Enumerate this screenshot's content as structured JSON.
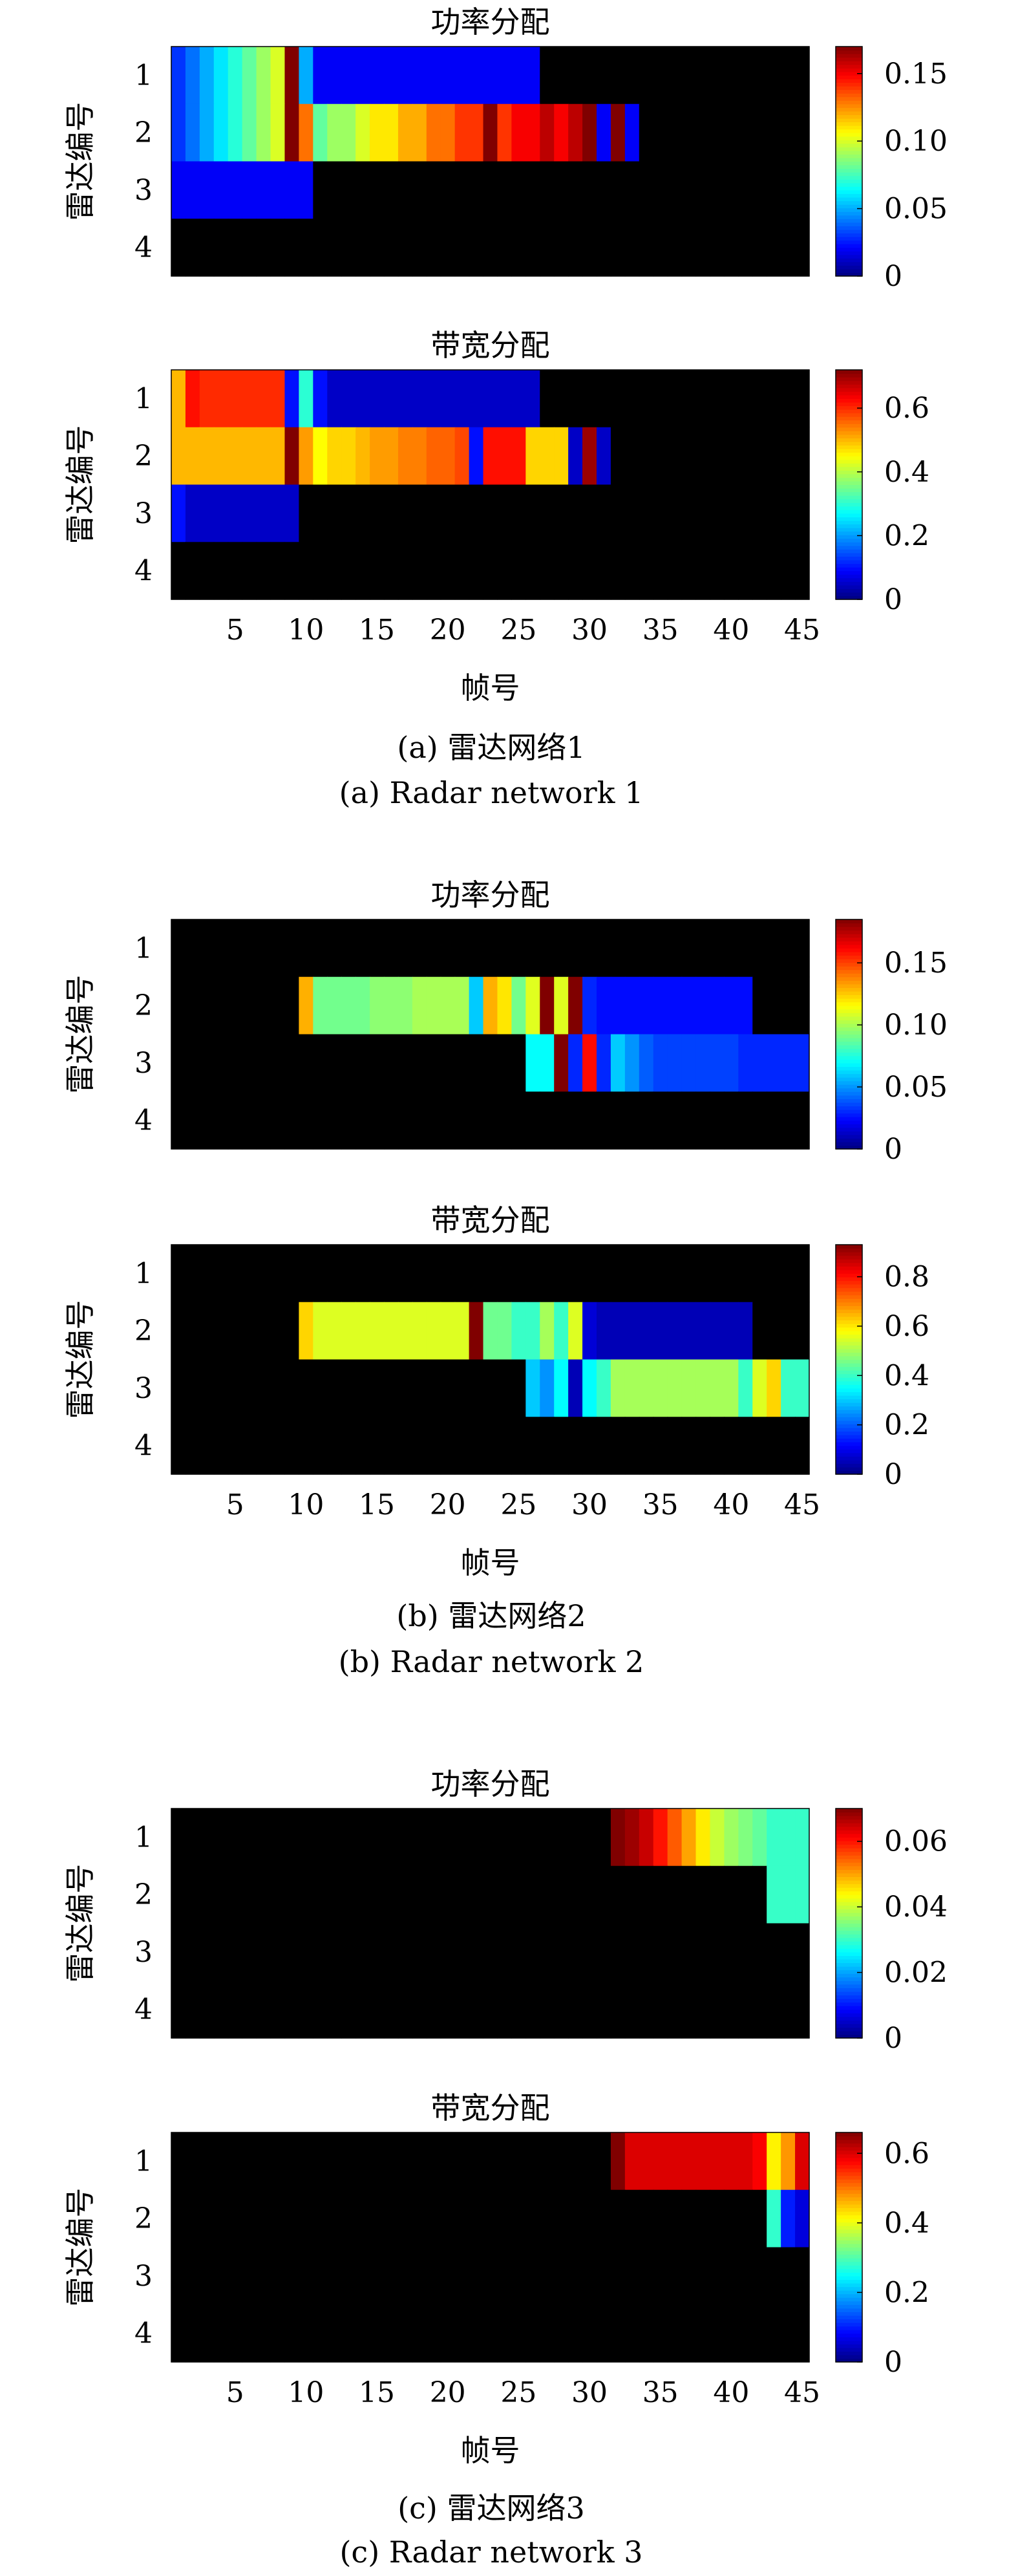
{
  "figure": {
    "ylabel": "雷达编号",
    "xlabel": "帧号",
    "y_tick_labels": [
      "1",
      "2",
      "3",
      "4"
    ],
    "x_tick_labels": [
      "5",
      "10",
      "15",
      "20",
      "25",
      "30",
      "35",
      "40",
      "45"
    ],
    "colormap": "jet",
    "zero_color": "#000000",
    "panels": [
      {
        "caption_cn": "(a) 雷达网络1",
        "caption_en": "(a) Radar network 1"
      },
      {
        "caption_cn": "(b) 雷达网络2",
        "caption_en": "(b) Radar network 2"
      },
      {
        "caption_cn": "(c) 雷达网络3",
        "caption_en": "(c) Radar network 3"
      }
    ]
  },
  "chart_data": [
    {
      "type": "heatmap",
      "panel": 0,
      "title": "功率分配",
      "ylabel": "雷达编号",
      "xlabel": "",
      "x": [
        1,
        45
      ],
      "rows": [
        "1",
        "2",
        "3",
        "4"
      ],
      "clim": [
        0,
        0.17
      ],
      "colorbar_ticks": [
        0,
        0.05,
        0.1,
        0.15
      ],
      "colorbar_tick_labels": [
        "0",
        "0.05",
        "0.10",
        "0.15"
      ],
      "values": [
        [
          0.03,
          0.04,
          0.05,
          0.06,
          0.07,
          0.08,
          0.09,
          0.1,
          0.17,
          0.05,
          0.02,
          0.02,
          0.02,
          0.02,
          0.02,
          0.02,
          0.02,
          0.02,
          0.02,
          0.02,
          0.02,
          0.02,
          0.02,
          0.02,
          0.02,
          0.02,
          0,
          0,
          0,
          0,
          0,
          0,
          0,
          0,
          0,
          0,
          0,
          0,
          0,
          0,
          0,
          0,
          0,
          0,
          0
        ],
        [
          0.03,
          0.04,
          0.05,
          0.06,
          0.07,
          0.08,
          0.09,
          0.1,
          0.17,
          0.13,
          0.08,
          0.09,
          0.09,
          0.1,
          0.11,
          0.11,
          0.12,
          0.12,
          0.13,
          0.13,
          0.14,
          0.14,
          0.17,
          0.14,
          0.15,
          0.15,
          0.16,
          0.15,
          0.16,
          0.17,
          0.02,
          0.17,
          0.02,
          0,
          0,
          0,
          0,
          0,
          0,
          0,
          0,
          0,
          0,
          0,
          0
        ],
        [
          0.02,
          0.02,
          0.02,
          0.02,
          0.02,
          0.02,
          0.02,
          0.02,
          0.02,
          0.02,
          0,
          0,
          0,
          0,
          0,
          0,
          0,
          0,
          0,
          0,
          0,
          0,
          0,
          0,
          0,
          0,
          0,
          0,
          0,
          0,
          0,
          0,
          0,
          0,
          0,
          0,
          0,
          0,
          0,
          0,
          0,
          0,
          0,
          0,
          0
        ],
        [
          0,
          0,
          0,
          0,
          0,
          0,
          0,
          0,
          0,
          0,
          0,
          0,
          0,
          0,
          0,
          0,
          0,
          0,
          0,
          0,
          0,
          0,
          0,
          0,
          0,
          0,
          0,
          0,
          0,
          0,
          0,
          0,
          0,
          0,
          0,
          0,
          0,
          0,
          0,
          0,
          0,
          0,
          0,
          0,
          0
        ]
      ]
    },
    {
      "type": "heatmap",
      "panel": 0,
      "title": "带宽分配",
      "ylabel": "雷达编号",
      "xlabel": "帧号",
      "x": [
        1,
        45
      ],
      "rows": [
        "1",
        "2",
        "3",
        "4"
      ],
      "clim": [
        0,
        0.72
      ],
      "colorbar_ticks": [
        0,
        0.2,
        0.4,
        0.6
      ],
      "colorbar_tick_labels": [
        "0",
        "0.2",
        "0.4",
        "0.6"
      ],
      "values": [
        [
          0.5,
          0.62,
          0.6,
          0.6,
          0.6,
          0.6,
          0.6,
          0.6,
          0.1,
          0.3,
          0.1,
          0.05,
          0.05,
          0.05,
          0.05,
          0.05,
          0.05,
          0.05,
          0.05,
          0.05,
          0.05,
          0.05,
          0.05,
          0.05,
          0.05,
          0.05,
          0,
          0,
          0,
          0,
          0,
          0,
          0,
          0,
          0,
          0,
          0,
          0,
          0,
          0,
          0,
          0,
          0,
          0,
          0
        ],
        [
          0.5,
          0.5,
          0.5,
          0.5,
          0.5,
          0.5,
          0.5,
          0.5,
          0.72,
          0.52,
          0.45,
          0.48,
          0.48,
          0.5,
          0.52,
          0.52,
          0.54,
          0.54,
          0.56,
          0.56,
          0.58,
          0.1,
          0.62,
          0.62,
          0.62,
          0.48,
          0.48,
          0.48,
          0.05,
          0.7,
          0.05,
          0,
          0,
          0,
          0,
          0,
          0,
          0,
          0,
          0,
          0,
          0,
          0,
          0,
          0
        ],
        [
          0.1,
          0.05,
          0.05,
          0.05,
          0.05,
          0.05,
          0.05,
          0.05,
          0.05,
          0,
          0,
          0,
          0,
          0,
          0,
          0,
          0,
          0,
          0,
          0,
          0,
          0,
          0,
          0,
          0,
          0,
          0,
          0,
          0,
          0,
          0,
          0,
          0,
          0,
          0,
          0,
          0,
          0,
          0,
          0,
          0,
          0,
          0,
          0,
          0
        ],
        [
          0,
          0,
          0,
          0,
          0,
          0,
          0,
          0,
          0,
          0,
          0,
          0,
          0,
          0,
          0,
          0,
          0,
          0,
          0,
          0,
          0,
          0,
          0,
          0,
          0,
          0,
          0,
          0,
          0,
          0,
          0,
          0,
          0,
          0,
          0,
          0,
          0,
          0,
          0,
          0,
          0,
          0,
          0,
          0,
          0
        ]
      ]
    },
    {
      "type": "heatmap",
      "panel": 1,
      "title": "功率分配",
      "ylabel": "雷达编号",
      "xlabel": "",
      "x": [
        1,
        45
      ],
      "rows": [
        "1",
        "2",
        "3",
        "4"
      ],
      "clim": [
        0,
        0.185
      ],
      "colorbar_ticks": [
        0,
        0.05,
        0.1,
        0.15
      ],
      "colorbar_tick_labels": [
        "0",
        "0.05",
        "0.10",
        "0.15"
      ],
      "values": [
        [
          0,
          0,
          0,
          0,
          0,
          0,
          0,
          0,
          0,
          0,
          0,
          0,
          0,
          0,
          0,
          0,
          0,
          0,
          0,
          0,
          0,
          0,
          0,
          0,
          0,
          0,
          0,
          0,
          0,
          0,
          0,
          0,
          0,
          0,
          0,
          0,
          0,
          0,
          0,
          0,
          0,
          0,
          0,
          0,
          0
        ],
        [
          0,
          0,
          0,
          0,
          0,
          0,
          0,
          0,
          0,
          0.13,
          0.09,
          0.09,
          0.09,
          0.09,
          0.095,
          0.095,
          0.095,
          0.1,
          0.1,
          0.1,
          0.1,
          0.06,
          0.13,
          0.12,
          0.09,
          0.11,
          0.185,
          0.11,
          0.185,
          0.03,
          0.025,
          0.025,
          0.025,
          0.025,
          0.025,
          0.025,
          0.025,
          0.025,
          0.025,
          0.025,
          0.025,
          0,
          0,
          0,
          0
        ],
        [
          0,
          0,
          0,
          0,
          0,
          0,
          0,
          0,
          0,
          0,
          0,
          0,
          0,
          0,
          0,
          0,
          0,
          0,
          0,
          0,
          0,
          0,
          0,
          0,
          0,
          0.07,
          0.07,
          0.185,
          0.03,
          0.16,
          0.03,
          0.06,
          0.05,
          0.04,
          0.035,
          0.035,
          0.035,
          0.035,
          0.035,
          0.035,
          0.03,
          0.03,
          0.03,
          0.03,
          0.03
        ],
        [
          0,
          0,
          0,
          0,
          0,
          0,
          0,
          0,
          0,
          0,
          0,
          0,
          0,
          0,
          0,
          0,
          0,
          0,
          0,
          0,
          0,
          0,
          0,
          0,
          0,
          0,
          0,
          0,
          0,
          0,
          0,
          0,
          0,
          0,
          0,
          0,
          0,
          0,
          0,
          0,
          0,
          0,
          0,
          0,
          0
        ]
      ]
    },
    {
      "type": "heatmap",
      "panel": 1,
      "title": "带宽分配",
      "ylabel": "雷达编号",
      "xlabel": "帧号",
      "x": [
        1,
        45
      ],
      "rows": [
        "1",
        "2",
        "3",
        "4"
      ],
      "clim": [
        0,
        0.93
      ],
      "colorbar_ticks": [
        0,
        0.2,
        0.4,
        0.6,
        0.8
      ],
      "colorbar_tick_labels": [
        "0",
        "0.2",
        "0.4",
        "0.6",
        "0.8"
      ],
      "values": [
        [
          0,
          0,
          0,
          0,
          0,
          0,
          0,
          0,
          0,
          0,
          0,
          0,
          0,
          0,
          0,
          0,
          0,
          0,
          0,
          0,
          0,
          0,
          0,
          0,
          0,
          0,
          0,
          0,
          0,
          0,
          0,
          0,
          0,
          0,
          0,
          0,
          0,
          0,
          0,
          0,
          0,
          0,
          0,
          0,
          0
        ],
        [
          0,
          0,
          0,
          0,
          0,
          0,
          0,
          0,
          0,
          0.62,
          0.55,
          0.55,
          0.55,
          0.55,
          0.55,
          0.55,
          0.55,
          0.55,
          0.55,
          0.55,
          0.55,
          0.93,
          0.45,
          0.45,
          0.4,
          0.4,
          0.5,
          0.4,
          0.55,
          0.08,
          0.05,
          0.05,
          0.05,
          0.05,
          0.05,
          0.05,
          0.05,
          0.05,
          0.05,
          0.05,
          0.05,
          0,
          0,
          0,
          0
        ],
        [
          0,
          0,
          0,
          0,
          0,
          0,
          0,
          0,
          0,
          0,
          0,
          0,
          0,
          0,
          0,
          0,
          0,
          0,
          0,
          0,
          0,
          0,
          0,
          0,
          0,
          0.3,
          0.25,
          0.35,
          0.05,
          0.35,
          0.4,
          0.5,
          0.5,
          0.5,
          0.5,
          0.5,
          0.5,
          0.5,
          0.5,
          0.5,
          0.4,
          0.55,
          0.62,
          0.4,
          0.4
        ],
        [
          0,
          0,
          0,
          0,
          0,
          0,
          0,
          0,
          0,
          0,
          0,
          0,
          0,
          0,
          0,
          0,
          0,
          0,
          0,
          0,
          0,
          0,
          0,
          0,
          0,
          0,
          0,
          0,
          0,
          0,
          0,
          0,
          0,
          0,
          0,
          0,
          0,
          0,
          0,
          0,
          0,
          0,
          0,
          0,
          0
        ]
      ]
    },
    {
      "type": "heatmap",
      "panel": 2,
      "title": "功率分配",
      "ylabel": "雷达编号",
      "xlabel": "",
      "x": [
        1,
        45
      ],
      "rows": [
        "1",
        "2",
        "3",
        "4"
      ],
      "clim": [
        0,
        0.07
      ],
      "colorbar_ticks": [
        0,
        0.02,
        0.04,
        0.06
      ],
      "colorbar_tick_labels": [
        "0",
        "0.02",
        "0.04",
        "0.06"
      ],
      "values": [
        [
          0,
          0,
          0,
          0,
          0,
          0,
          0,
          0,
          0,
          0,
          0,
          0,
          0,
          0,
          0,
          0,
          0,
          0,
          0,
          0,
          0,
          0,
          0,
          0,
          0,
          0,
          0,
          0,
          0,
          0,
          0,
          0.07,
          0.068,
          0.065,
          0.06,
          0.055,
          0.05,
          0.045,
          0.04,
          0.037,
          0.035,
          0.033,
          0.03,
          0.03,
          0.03
        ],
        [
          0,
          0,
          0,
          0,
          0,
          0,
          0,
          0,
          0,
          0,
          0,
          0,
          0,
          0,
          0,
          0,
          0,
          0,
          0,
          0,
          0,
          0,
          0,
          0,
          0,
          0,
          0,
          0,
          0,
          0,
          0,
          0,
          0,
          0,
          0,
          0,
          0,
          0,
          0,
          0,
          0,
          0,
          0.03,
          0.03,
          0.03
        ],
        [
          0,
          0,
          0,
          0,
          0,
          0,
          0,
          0,
          0,
          0,
          0,
          0,
          0,
          0,
          0,
          0,
          0,
          0,
          0,
          0,
          0,
          0,
          0,
          0,
          0,
          0,
          0,
          0,
          0,
          0,
          0,
          0,
          0,
          0,
          0,
          0,
          0,
          0,
          0,
          0,
          0,
          0,
          0,
          0,
          0
        ],
        [
          0,
          0,
          0,
          0,
          0,
          0,
          0,
          0,
          0,
          0,
          0,
          0,
          0,
          0,
          0,
          0,
          0,
          0,
          0,
          0,
          0,
          0,
          0,
          0,
          0,
          0,
          0,
          0,
          0,
          0,
          0,
          0,
          0,
          0,
          0,
          0,
          0,
          0,
          0,
          0,
          0,
          0,
          0,
          0,
          0
        ]
      ]
    },
    {
      "type": "heatmap",
      "panel": 2,
      "title": "带宽分配",
      "ylabel": "雷达编号",
      "xlabel": "帧号",
      "x": [
        1,
        45
      ],
      "rows": [
        "1",
        "2",
        "3",
        "4"
      ],
      "clim": [
        0,
        0.66
      ],
      "colorbar_ticks": [
        0,
        0.2,
        0.4,
        0.6
      ],
      "colorbar_tick_labels": [
        "0",
        "0.2",
        "0.4",
        "0.6"
      ],
      "values": [
        [
          0,
          0,
          0,
          0,
          0,
          0,
          0,
          0,
          0,
          0,
          0,
          0,
          0,
          0,
          0,
          0,
          0,
          0,
          0,
          0,
          0,
          0,
          0,
          0,
          0,
          0,
          0,
          0,
          0,
          0,
          0,
          0.66,
          0.6,
          0.6,
          0.6,
          0.6,
          0.6,
          0.6,
          0.6,
          0.6,
          0.6,
          0.58,
          0.42,
          0.48,
          0.6
        ],
        [
          0,
          0,
          0,
          0,
          0,
          0,
          0,
          0,
          0,
          0,
          0,
          0,
          0,
          0,
          0,
          0,
          0,
          0,
          0,
          0,
          0,
          0,
          0,
          0,
          0,
          0,
          0,
          0,
          0,
          0,
          0,
          0,
          0,
          0,
          0,
          0,
          0,
          0,
          0,
          0,
          0,
          0,
          0.28,
          0.1,
          0.06
        ],
        [
          0,
          0,
          0,
          0,
          0,
          0,
          0,
          0,
          0,
          0,
          0,
          0,
          0,
          0,
          0,
          0,
          0,
          0,
          0,
          0,
          0,
          0,
          0,
          0,
          0,
          0,
          0,
          0,
          0,
          0,
          0,
          0,
          0,
          0,
          0,
          0,
          0,
          0,
          0,
          0,
          0,
          0,
          0,
          0,
          0
        ],
        [
          0,
          0,
          0,
          0,
          0,
          0,
          0,
          0,
          0,
          0,
          0,
          0,
          0,
          0,
          0,
          0,
          0,
          0,
          0,
          0,
          0,
          0,
          0,
          0,
          0,
          0,
          0,
          0,
          0,
          0,
          0,
          0,
          0,
          0,
          0,
          0,
          0,
          0,
          0,
          0,
          0,
          0,
          0,
          0,
          0
        ]
      ]
    }
  ]
}
